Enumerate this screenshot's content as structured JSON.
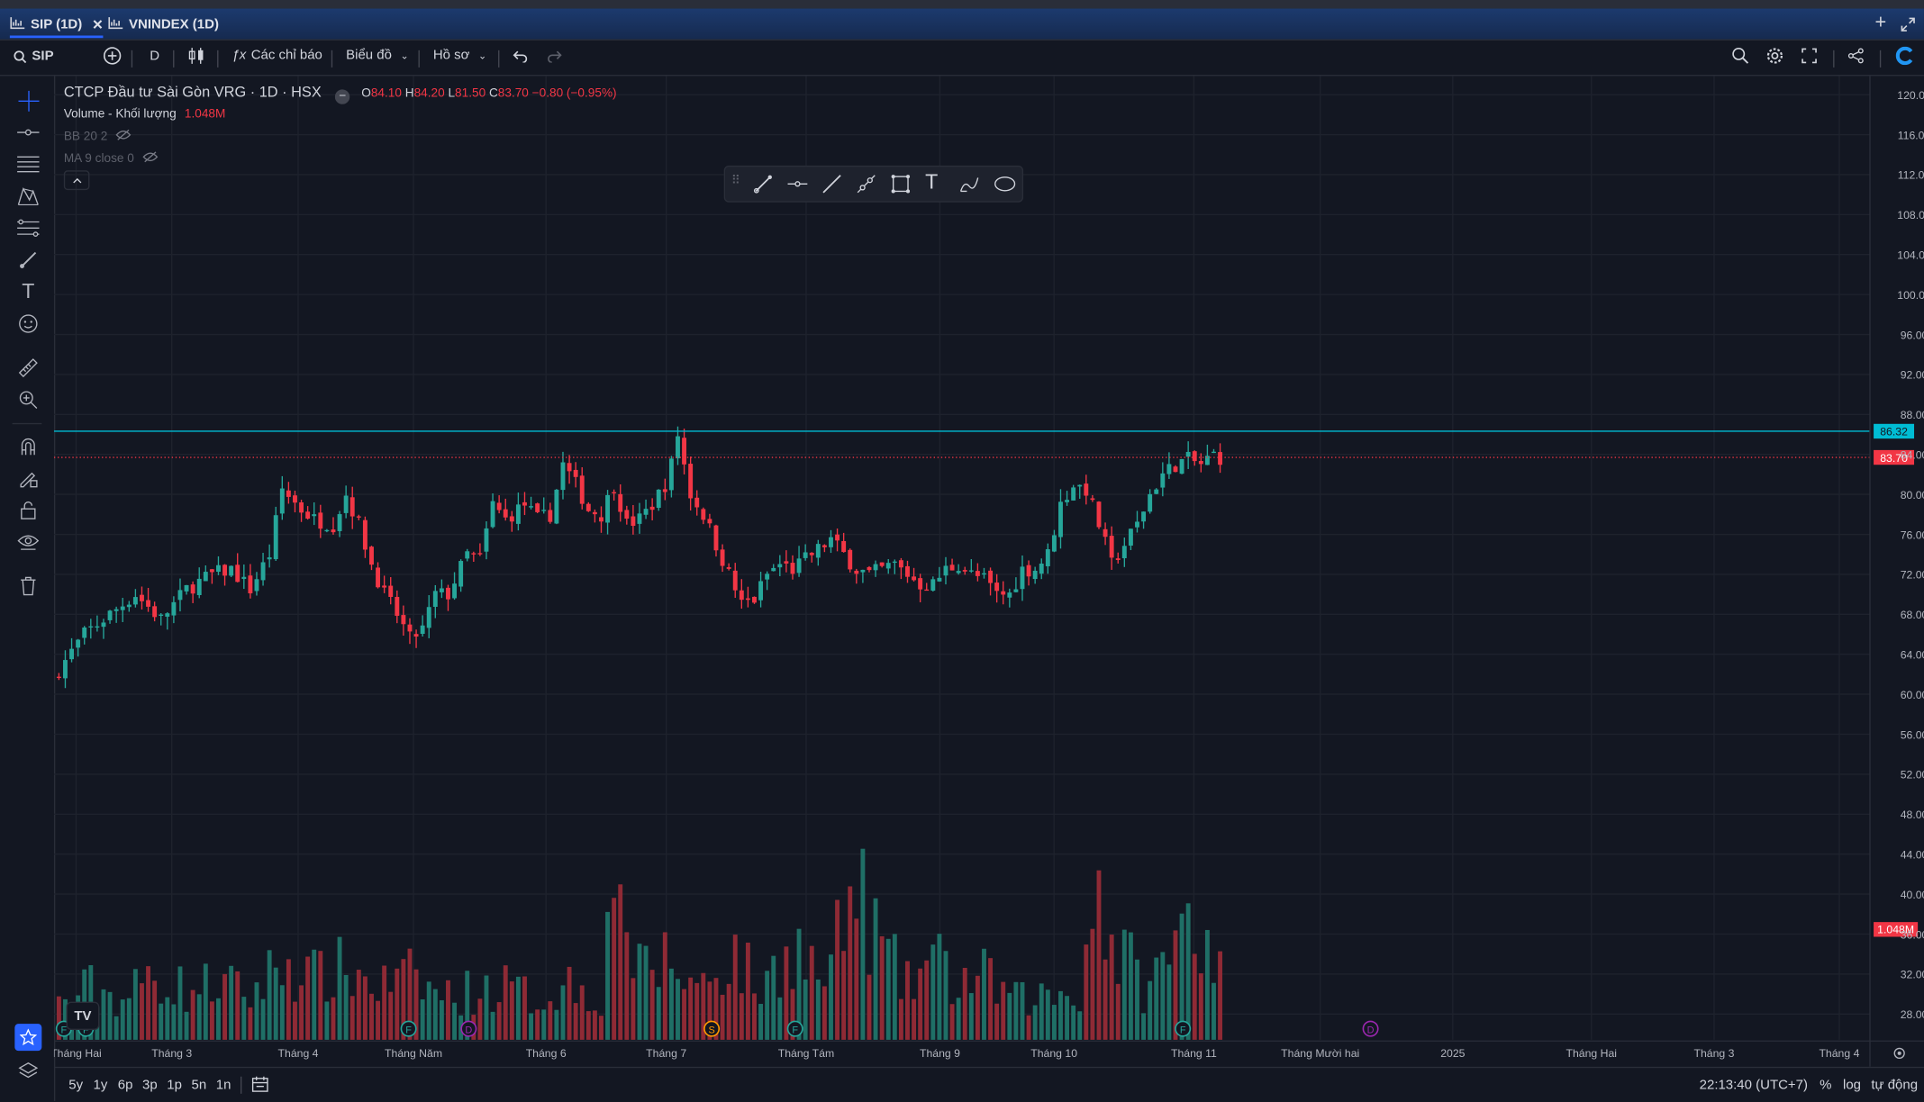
{
  "tabs": [
    {
      "label": "SIP (1D)",
      "active": true
    },
    {
      "label": "VNINDEX (1D)",
      "active": false
    }
  ],
  "toolbar": {
    "symbol": "SIP",
    "interval": "D",
    "indicators": "Các chỉ báo",
    "chart_menu": "Biểu đồ",
    "profile_menu": "Hồ sơ"
  },
  "legend": {
    "title": "CTCP Đầu tư Sài Gòn VRG · 1D · HSX",
    "o_label": "O",
    "o_value": "84.10",
    "h_label": "H",
    "h_value": "84.20",
    "l_label": "L",
    "l_value": "81.50",
    "c_label": "C",
    "c_value": "83.70",
    "change": "−0.80 (−0.95%)",
    "volume_label": "Volume - Khối lượng",
    "volume_value": "1.048M",
    "bb": "BB 20 2",
    "ma": "MA 9 close 0"
  },
  "bottom": {
    "ranges": [
      "5y",
      "1y",
      "6p",
      "3p",
      "1p",
      "5n",
      "1n"
    ],
    "clock": "22:13:40 (UTC+7)",
    "percent": "%",
    "log": "log",
    "auto": "tự động"
  },
  "colors": {
    "up": "#26a69a",
    "down": "#f23645",
    "up_volume": "#1f6f66",
    "down_volume": "#8f2a35",
    "horizontal_line": "#00bcd4",
    "accent": "#2962ff",
    "background": "#131722"
  },
  "chart_data": {
    "type": "candlestick",
    "y_axis": {
      "min": 26,
      "max": 121,
      "ticks": [
        "120.00",
        "116.00",
        "112.00",
        "108.00",
        "104.00",
        "100.00",
        "96.00",
        "92.00",
        "88.00",
        "84.00",
        "80.00",
        "76.00",
        "72.00",
        "68.00",
        "64.00",
        "60.00",
        "56.00",
        "52.00",
        "48.00",
        "44.00",
        "40.00",
        "36.00",
        "32.00",
        "28.00"
      ]
    },
    "x_axis": {
      "labels": [
        "Tháng Hai",
        "Tháng 3",
        "Tháng 4",
        "Tháng Năm",
        "Tháng 6",
        "Tháng 7",
        "Tháng Tám",
        "Tháng 9",
        "Tháng 10",
        "Tháng 11",
        "Tháng Mười hai",
        "2025",
        "Tháng Hai",
        "Tháng 3",
        "Tháng 4"
      ]
    },
    "horizontal_line": {
      "value": 86.32,
      "label": "86.32"
    },
    "last_price": {
      "value": 83.7,
      "label": "83.70"
    },
    "volume_badge": "1.048M",
    "event_markers": [
      {
        "letter": "F",
        "color": "#26a69a",
        "month": "Tháng Hai"
      },
      {
        "letter": "F",
        "color": "#26a69a",
        "month": "Tháng Hai"
      },
      {
        "letter": "F",
        "color": "#26a69a",
        "month": "Tháng Năm"
      },
      {
        "letter": "D",
        "color": "#9c27b0",
        "month": "Tháng Năm"
      },
      {
        "letter": "S",
        "color": "#ff9800",
        "month": "Tháng 7"
      },
      {
        "letter": "F",
        "color": "#26a69a",
        "month": "Tháng Tám"
      },
      {
        "letter": "F",
        "color": "#26a69a",
        "month": "Tháng 11"
      },
      {
        "letter": "D",
        "color": "#9c27b0",
        "month": "Tháng Mười hai"
      }
    ],
    "close_path": [
      [
        0,
        62.5
      ],
      [
        4,
        66
      ],
      [
        8,
        68
      ],
      [
        12,
        70
      ],
      [
        16,
        67.5
      ],
      [
        20,
        70.5
      ],
      [
        24,
        72
      ],
      [
        27,
        72.5
      ],
      [
        30,
        70.5
      ],
      [
        33,
        74
      ],
      [
        35,
        80.5
      ],
      [
        38,
        78.5
      ],
      [
        40,
        77.5
      ],
      [
        43,
        77
      ],
      [
        45,
        80
      ],
      [
        47,
        77
      ],
      [
        49,
        73
      ],
      [
        51,
        70
      ],
      [
        53,
        68
      ],
      [
        55,
        65.5
      ],
      [
        57,
        66.5
      ],
      [
        59,
        70
      ],
      [
        61,
        70
      ],
      [
        64,
        74
      ],
      [
        66,
        73.5
      ],
      [
        68,
        79
      ],
      [
        70,
        77.5
      ],
      [
        73,
        79
      ],
      [
        75,
        77.5
      ],
      [
        77,
        78
      ],
      [
        79,
        83
      ],
      [
        81,
        81
      ],
      [
        83,
        78.5
      ],
      [
        85,
        78
      ],
      [
        87,
        81
      ],
      [
        89,
        77
      ],
      [
        91,
        77.5
      ],
      [
        93,
        79
      ],
      [
        95,
        81
      ],
      [
        96,
        83
      ],
      [
        97,
        86
      ],
      [
        99,
        80
      ],
      [
        101,
        78
      ],
      [
        103,
        75
      ],
      [
        105,
        72
      ],
      [
        107,
        69
      ],
      [
        109,
        69.5
      ],
      [
        111,
        72
      ],
      [
        113,
        73
      ],
      [
        115,
        72.5
      ],
      [
        117,
        73.5
      ],
      [
        119,
        74.5
      ],
      [
        121,
        75.5
      ],
      [
        123,
        74
      ],
      [
        125,
        72.5
      ],
      [
        127,
        72
      ],
      [
        129,
        72.5
      ],
      [
        131,
        73
      ],
      [
        133,
        72
      ],
      [
        135,
        71
      ],
      [
        137,
        71
      ],
      [
        139,
        72.5
      ],
      [
        141,
        73
      ],
      [
        143,
        72
      ],
      [
        145,
        71.5
      ],
      [
        147,
        70
      ],
      [
        149,
        70
      ],
      [
        151,
        72.5
      ],
      [
        153,
        72.5
      ],
      [
        155,
        74
      ],
      [
        157,
        79
      ],
      [
        159,
        81
      ],
      [
        161,
        80.5
      ],
      [
        163,
        77
      ],
      [
        165,
        73
      ],
      [
        167,
        75
      ],
      [
        169,
        77
      ],
      [
        171,
        80
      ],
      [
        173,
        82
      ],
      [
        175,
        83
      ],
      [
        177,
        83.5
      ],
      [
        179,
        83
      ],
      [
        181,
        84
      ],
      [
        182,
        83.7
      ]
    ],
    "volume_path": [
      [
        0,
        8
      ],
      [
        5,
        12
      ],
      [
        10,
        9
      ],
      [
        15,
        15
      ],
      [
        20,
        11
      ],
      [
        25,
        13
      ],
      [
        30,
        10
      ],
      [
        35,
        18
      ],
      [
        40,
        14
      ],
      [
        45,
        16
      ],
      [
        50,
        12
      ],
      [
        55,
        14
      ],
      [
        60,
        10
      ],
      [
        65,
        11
      ],
      [
        70,
        12
      ],
      [
        75,
        9
      ],
      [
        80,
        13
      ],
      [
        85,
        10
      ],
      [
        88,
        47
      ],
      [
        90,
        14
      ],
      [
        95,
        18
      ],
      [
        100,
        12
      ],
      [
        103,
        16
      ],
      [
        106,
        19
      ],
      [
        110,
        11
      ],
      [
        115,
        22
      ],
      [
        120,
        13
      ],
      [
        125,
        34
      ],
      [
        128,
        24
      ],
      [
        130,
        18
      ],
      [
        133,
        12
      ],
      [
        137,
        19
      ],
      [
        140,
        13
      ],
      [
        145,
        14
      ],
      [
        150,
        9
      ],
      [
        155,
        10
      ],
      [
        160,
        11
      ],
      [
        163,
        38
      ],
      [
        165,
        20
      ],
      [
        167,
        19
      ],
      [
        170,
        12
      ],
      [
        173,
        16
      ],
      [
        175,
        23
      ],
      [
        177,
        25
      ],
      [
        179,
        15
      ],
      [
        180,
        46
      ],
      [
        181,
        18
      ],
      [
        182,
        22
      ]
    ]
  }
}
